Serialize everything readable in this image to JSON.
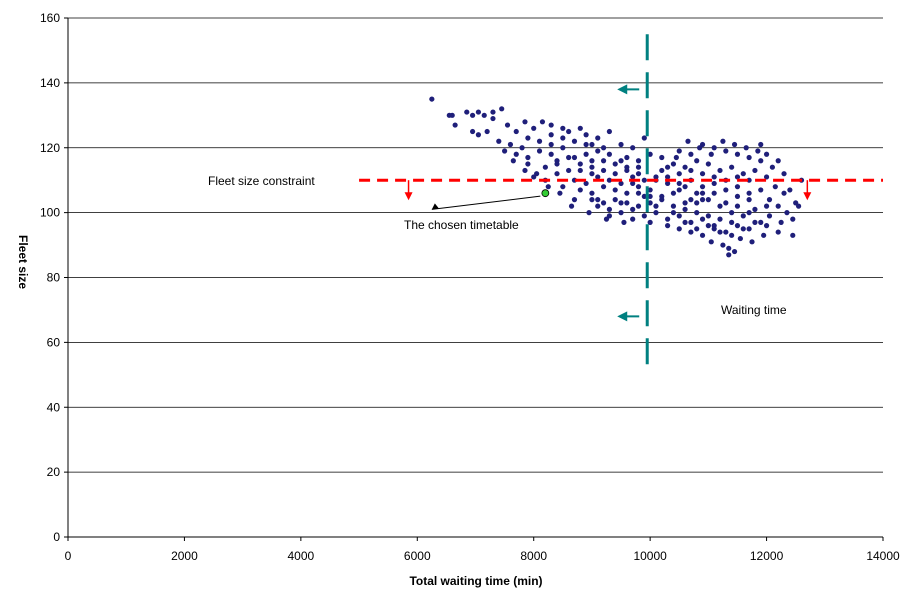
{
  "chart_data": {
    "type": "scatter",
    "title": "",
    "xlabel": "Total waiting time (min)",
    "ylabel": "Fleet size",
    "xlim": [
      0,
      14000
    ],
    "ylim": [
      0,
      160
    ],
    "xticks": [
      0,
      2000,
      4000,
      6000,
      8000,
      10000,
      12000,
      14000
    ],
    "yticks": [
      0,
      20,
      40,
      60,
      80,
      100,
      120,
      140,
      160
    ],
    "grid": "horizontal",
    "legend": "none",
    "point_color": "#1f1f7a",
    "series": [
      {
        "values": [
          [
            6250,
            135
          ],
          [
            6550,
            130
          ],
          [
            6600,
            130
          ],
          [
            6850,
            131
          ],
          [
            6950,
            130
          ],
          [
            7050,
            131
          ],
          [
            7150,
            130
          ],
          [
            7300,
            131
          ],
          [
            7450,
            132
          ],
          [
            7300,
            129
          ],
          [
            6650,
            127
          ],
          [
            6950,
            125
          ],
          [
            7200,
            125
          ],
          [
            7050,
            124
          ],
          [
            7550,
            127
          ],
          [
            7700,
            125
          ],
          [
            7850,
            128
          ],
          [
            8000,
            126
          ],
          [
            8150,
            128
          ],
          [
            8300,
            127
          ],
          [
            7400,
            122
          ],
          [
            7600,
            121
          ],
          [
            7900,
            123
          ],
          [
            8100,
            122
          ],
          [
            8300,
            121
          ],
          [
            8500,
            123
          ],
          [
            8700,
            122
          ],
          [
            8900,
            124
          ],
          [
            9100,
            123
          ],
          [
            9300,
            125
          ],
          [
            7500,
            119
          ],
          [
            7700,
            118
          ],
          [
            7900,
            117
          ],
          [
            8100,
            119
          ],
          [
            8300,
            118
          ],
          [
            8500,
            120
          ],
          [
            8700,
            117
          ],
          [
            8900,
            118
          ],
          [
            9100,
            119
          ],
          [
            9300,
            118
          ],
          [
            7900,
            115
          ],
          [
            8200,
            114
          ],
          [
            8400,
            115
          ],
          [
            8600,
            113
          ],
          [
            8800,
            115
          ],
          [
            9000,
            114
          ],
          [
            9200,
            113
          ],
          [
            9400,
            115
          ],
          [
            9600,
            114
          ],
          [
            9800,
            112
          ],
          [
            8000,
            111
          ],
          [
            8200,
            110
          ],
          [
            8400,
            112
          ],
          [
            8700,
            110
          ],
          [
            8900,
            109
          ],
          [
            9100,
            111
          ],
          [
            9300,
            110
          ],
          [
            9500,
            109
          ],
          [
            9700,
            111
          ],
          [
            9900,
            110
          ],
          [
            8500,
            108
          ],
          [
            8800,
            107
          ],
          [
            9000,
            106
          ],
          [
            9200,
            108
          ],
          [
            9400,
            107
          ],
          [
            9600,
            106
          ],
          [
            9800,
            108
          ],
          [
            10000,
            107
          ],
          [
            10200,
            105
          ],
          [
            10400,
            106
          ],
          [
            9000,
            104
          ],
          [
            9200,
            103
          ],
          [
            9400,
            104
          ],
          [
            9600,
            103
          ],
          [
            9800,
            102
          ],
          [
            10000,
            103
          ],
          [
            10200,
            104
          ],
          [
            10400,
            102
          ],
          [
            10600,
            101
          ],
          [
            10800,
            103
          ],
          [
            9300,
            101
          ],
          [
            9500,
            100
          ],
          [
            9700,
            101
          ],
          [
            9900,
            99
          ],
          [
            10100,
            100
          ],
          [
            10300,
            98
          ],
          [
            10500,
            99
          ],
          [
            10700,
            97
          ],
          [
            10900,
            98
          ],
          [
            11100,
            96
          ],
          [
            10000,
            97
          ],
          [
            10300,
            96
          ],
          [
            10500,
            95
          ],
          [
            10700,
            94
          ],
          [
            10900,
            93
          ],
          [
            11100,
            95
          ],
          [
            11300,
            94
          ],
          [
            11500,
            96
          ],
          [
            11700,
            95
          ],
          [
            11900,
            97
          ],
          [
            10200,
            113
          ],
          [
            10400,
            115
          ],
          [
            10600,
            114
          ],
          [
            10800,
            116
          ],
          [
            11000,
            115
          ],
          [
            11200,
            113
          ],
          [
            11400,
            114
          ],
          [
            11600,
            112
          ],
          [
            11800,
            113
          ],
          [
            12000,
            111
          ],
          [
            10100,
            110
          ],
          [
            10300,
            111
          ],
          [
            10500,
            109
          ],
          [
            10700,
            110
          ],
          [
            10900,
            108
          ],
          [
            11100,
            109
          ],
          [
            11300,
            107
          ],
          [
            11500,
            108
          ],
          [
            11700,
            106
          ],
          [
            11900,
            107
          ],
          [
            10500,
            119
          ],
          [
            10700,
            118
          ],
          [
            10900,
            121
          ],
          [
            11100,
            120
          ],
          [
            11300,
            119
          ],
          [
            11500,
            118
          ],
          [
            11700,
            117
          ],
          [
            11900,
            116
          ],
          [
            12100,
            114
          ],
          [
            12300,
            112
          ],
          [
            11050,
            91
          ],
          [
            11250,
            90
          ],
          [
            11350,
            89
          ],
          [
            11450,
            88
          ],
          [
            11350,
            87
          ],
          [
            11550,
            92
          ],
          [
            11750,
            91
          ],
          [
            11950,
            93
          ],
          [
            12200,
            94
          ],
          [
            12450,
            93
          ],
          [
            12050,
            104
          ],
          [
            12200,
            102
          ],
          [
            12350,
            100
          ],
          [
            12500,
            103
          ],
          [
            12150,
            108
          ],
          [
            12400,
            107
          ],
          [
            12600,
            110
          ],
          [
            12250,
            97
          ],
          [
            12050,
            99
          ],
          [
            12450,
            98
          ],
          [
            9500,
            121
          ],
          [
            9700,
            120
          ],
          [
            9900,
            123
          ],
          [
            9600,
            117
          ],
          [
            9800,
            116
          ],
          [
            10000,
            118
          ],
          [
            10200,
            117
          ],
          [
            9400,
            112
          ],
          [
            9600,
            113
          ],
          [
            9800,
            114
          ],
          [
            8600,
            125
          ],
          [
            8800,
            126
          ],
          [
            9000,
            121
          ],
          [
            9200,
            120
          ],
          [
            8400,
            116
          ],
          [
            8600,
            117
          ],
          [
            8800,
            113
          ],
          [
            9000,
            112
          ],
          [
            8700,
            104
          ],
          [
            9100,
            102
          ],
          [
            7800,
            120
          ],
          [
            7650,
            116
          ],
          [
            7850,
            113
          ],
          [
            8050,
            112
          ],
          [
            8250,
            108
          ],
          [
            8450,
            106
          ],
          [
            8650,
            102
          ],
          [
            8950,
            100
          ],
          [
            9250,
            98
          ],
          [
            9550,
            97
          ],
          [
            10600,
            108
          ],
          [
            10800,
            106
          ],
          [
            11000,
            104
          ],
          [
            11200,
            102
          ],
          [
            11400,
            100
          ],
          [
            11600,
            99
          ],
          [
            11800,
            101
          ],
          [
            12000,
            102
          ],
          [
            11700,
            104
          ],
          [
            11500,
            105
          ],
          [
            10800,
            100
          ],
          [
            11000,
            99
          ],
          [
            11200,
            98
          ],
          [
            11400,
            97
          ],
          [
            10600,
            103
          ],
          [
            10900,
            104
          ],
          [
            11100,
            106
          ],
          [
            11300,
            103
          ],
          [
            11500,
            102
          ],
          [
            11700,
            100
          ],
          [
            9800,
            106
          ],
          [
            10000,
            105
          ],
          [
            10300,
            109
          ],
          [
            10500,
            112
          ],
          [
            10700,
            104
          ],
          [
            10900,
            112
          ],
          [
            11100,
            111
          ],
          [
            11300,
            110
          ],
          [
            11500,
            111
          ],
          [
            11700,
            110
          ],
          [
            8300,
            124
          ],
          [
            8500,
            126
          ],
          [
            8900,
            121
          ],
          [
            9200,
            116
          ],
          [
            9500,
            116
          ],
          [
            9700,
            109
          ],
          [
            9900,
            105
          ],
          [
            10100,
            102
          ],
          [
            10400,
            100
          ],
          [
            10600,
            97
          ],
          [
            11850,
            119
          ],
          [
            12000,
            118
          ],
          [
            11900,
            121
          ],
          [
            11650,
            120
          ],
          [
            11450,
            121
          ],
          [
            11250,
            122
          ],
          [
            11050,
            118
          ],
          [
            10850,
            120
          ],
          [
            10650,
            122
          ],
          [
            10450,
            117
          ],
          [
            12200,
            116
          ],
          [
            12300,
            106
          ],
          [
            12550,
            102
          ],
          [
            12000,
            96
          ],
          [
            11800,
            97
          ],
          [
            11600,
            95
          ],
          [
            11400,
            93
          ],
          [
            11200,
            94
          ],
          [
            11000,
            96
          ],
          [
            10800,
            95
          ],
          [
            9000,
            116
          ],
          [
            9100,
            104
          ],
          [
            9300,
            99
          ],
          [
            9500,
            103
          ],
          [
            9700,
            98
          ],
          [
            10100,
            111
          ],
          [
            10300,
            114
          ],
          [
            10500,
            107
          ],
          [
            10700,
            113
          ],
          [
            10900,
            106
          ]
        ]
      }
    ],
    "highlight": {
      "x": 8200,
      "y": 106,
      "color": "#33cc33",
      "label": "The chosen timetable"
    },
    "fleet_constraint": {
      "y": 110,
      "x_from": 5000,
      "x_to": 14000,
      "color": "#ff0000",
      "label": "Fleet size constraint"
    },
    "waiting_constraint": {
      "x": 9950,
      "y_from": 51,
      "y_to": 155,
      "color": "#008080",
      "label": "Waiting time"
    }
  }
}
